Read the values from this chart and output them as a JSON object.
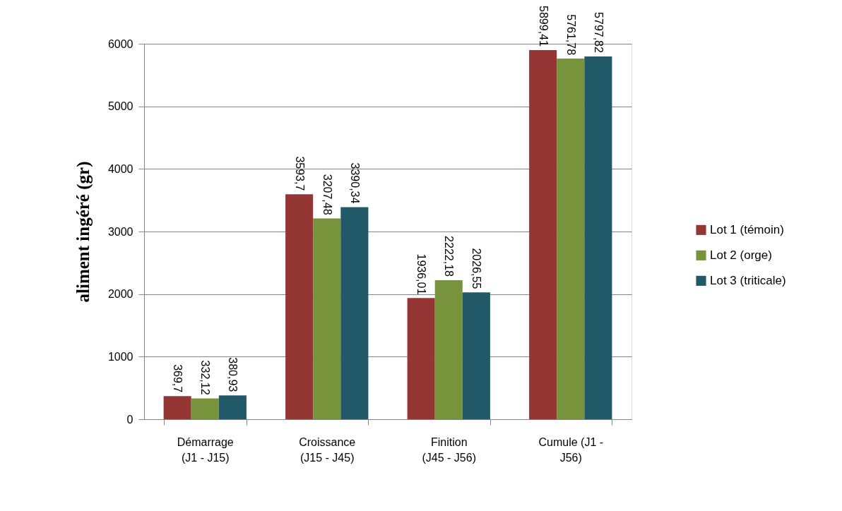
{
  "chart_data": {
    "type": "bar",
    "ylabel": "aliment ingéré  (gr)",
    "categories": [
      "Démarrage (J1 -  J15)",
      "Croissance (J15 -  J45)",
      "Finition (J45 -  J56)",
      "Cumule (J1 - J56)"
    ],
    "series": [
      {
        "name": "Lot 1 (témoin)",
        "color": "#943634",
        "values": [
          369.7,
          3593.7,
          1936.01,
          5899.41
        ],
        "value_labels": [
          "369,7",
          "3593,7",
          "1936,01",
          "5899,41"
        ]
      },
      {
        "name": "Lot 2 (orge)",
        "color": "#77933c",
        "values": [
          332.12,
          3207.48,
          2222.18,
          5761.78
        ],
        "value_labels": [
          "332,12",
          "3207,48",
          "2222,18",
          "5761,78"
        ]
      },
      {
        "name": "Lot 3 (triticale)",
        "color": "#215968",
        "values": [
          380.93,
          3390.34,
          2026.55,
          5797.82
        ],
        "value_labels": [
          "380,93",
          "3390,34",
          "2026,55",
          "5797,82"
        ]
      }
    ],
    "ylim": [
      0,
      6000
    ],
    "yticks": [
      0,
      1000,
      2000,
      3000,
      4000,
      5000,
      6000
    ],
    "grid": "y",
    "legend": "right"
  }
}
